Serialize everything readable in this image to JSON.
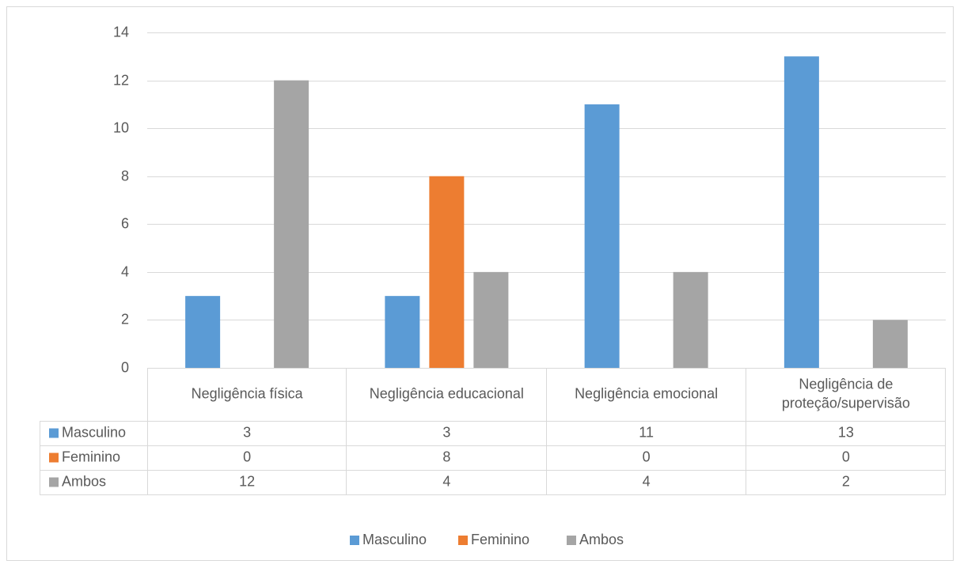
{
  "chart_data": {
    "type": "bar",
    "title": "",
    "xlabel": "",
    "ylabel": "",
    "categories": [
      [
        "Negligência física"
      ],
      [
        "Negligência educacional"
      ],
      [
        "Negligência emocional"
      ],
      [
        "Negligência de",
        "proteção/supervisão"
      ]
    ],
    "series": [
      {
        "name": "Masculino",
        "color": "#5B9BD5",
        "values": [
          3,
          3,
          11,
          13
        ]
      },
      {
        "name": "Feminino",
        "color": "#ED7D31",
        "values": [
          0,
          8,
          0,
          0
        ]
      },
      {
        "name": "Ambos",
        "color": "#A5A5A5",
        "values": [
          12,
          4,
          4,
          2
        ]
      }
    ],
    "ylim": [
      0,
      14
    ],
    "yticks": [
      0,
      2,
      4,
      6,
      8,
      10,
      12,
      14
    ],
    "grid": true,
    "legend": "bottom",
    "data_table": true
  }
}
